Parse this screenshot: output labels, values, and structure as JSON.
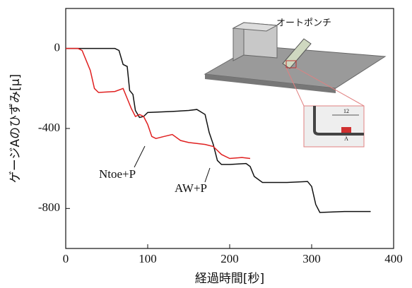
{
  "chart_data": {
    "type": "line",
    "xlabel": "経過時間[秒]",
    "ylabel": "ゲージAのひずみ[μ]",
    "xlim": [
      0,
      400
    ],
    "xticks": [
      0,
      100,
      200,
      300,
      400
    ],
    "ylim": [
      -1000,
      200
    ],
    "yticks": [
      -800,
      -400,
      0
    ],
    "series": [
      {
        "color": "#111111",
        "x": [
          0,
          20,
          30,
          60,
          65,
          70,
          75,
          78,
          82,
          85,
          90,
          95,
          100,
          130,
          150,
          160,
          170,
          175,
          180,
          185,
          190,
          200,
          220,
          225,
          230,
          240,
          270,
          295,
          300,
          305,
          310,
          340,
          372
        ],
        "values": [
          0,
          0,
          0,
          0,
          -10,
          -80,
          -90,
          -210,
          -230,
          -310,
          -345,
          -340,
          -320,
          -315,
          -310,
          -305,
          -330,
          -420,
          -480,
          -560,
          -580,
          -580,
          -575,
          -590,
          -640,
          -670,
          -670,
          -665,
          -690,
          -780,
          -820,
          -815,
          -815
        ]
      },
      {
        "color": "#e02020",
        "x": [
          0,
          15,
          20,
          25,
          30,
          35,
          40,
          60,
          70,
          75,
          80,
          85,
          90,
          95,
          100,
          105,
          110,
          120,
          130,
          140,
          150,
          170,
          180,
          190,
          200,
          215,
          225
        ],
        "values": [
          0,
          0,
          -10,
          -60,
          -110,
          -200,
          -220,
          -215,
          -200,
          -250,
          -300,
          -340,
          -330,
          -340,
          -380,
          -440,
          -450,
          -440,
          -430,
          -460,
          -470,
          -480,
          -490,
          -530,
          -550,
          -545,
          -550
        ]
      }
    ],
    "annotations": [
      "Ntoe+P",
      "AW+P",
      "オートポンチ",
      "12",
      "A"
    ]
  }
}
